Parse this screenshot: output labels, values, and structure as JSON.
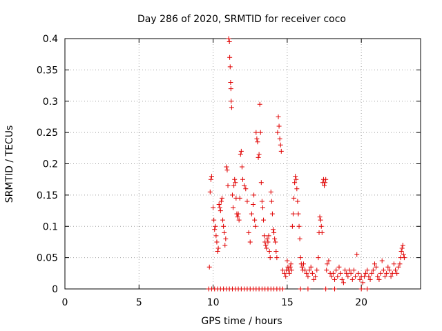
{
  "chart_data": {
    "type": "scatter",
    "title": "Day 286 of 2020, SRMTID for receiver coco",
    "xlabel": "GPS time / hours",
    "ylabel": "SRMTID / TECUs",
    "xlim": [
      0,
      24
    ],
    "ylim": [
      0,
      0.4
    ],
    "grid": true,
    "xticks": [
      {
        "value": 0,
        "label": "0"
      },
      {
        "value": 5,
        "label": "5"
      },
      {
        "value": 10,
        "label": "10"
      },
      {
        "value": 15,
        "label": "15"
      },
      {
        "value": 20,
        "label": "20"
      }
    ],
    "yticks": [
      {
        "value": 0,
        "label": "0"
      },
      {
        "value": 0.05,
        "label": "0.05"
      },
      {
        "value": 0.1,
        "label": "0.1"
      },
      {
        "value": 0.15,
        "label": "0.15"
      },
      {
        "value": 0.2,
        "label": "0.2"
      },
      {
        "value": 0.25,
        "label": "0.25"
      },
      {
        "value": 0.3,
        "label": "0.3"
      },
      {
        "value": 0.35,
        "label": "0.35"
      },
      {
        "value": 0.4,
        "label": "0.4"
      }
    ],
    "series": [
      {
        "name": "SRMTID",
        "marker": "+",
        "color": "#e00000",
        "points": [
          [
            9.75,
            0.035
          ],
          [
            9.8,
            0.155
          ],
          [
            9.85,
            0.175
          ],
          [
            9.9,
            0.18
          ],
          [
            10.0,
            0.13
          ],
          [
            10.05,
            0.11
          ],
          [
            10.1,
            0.095
          ],
          [
            10.15,
            0.1
          ],
          [
            10.2,
            0.085
          ],
          [
            10.25,
            0.075
          ],
          [
            10.3,
            0.06
          ],
          [
            10.35,
            0.065
          ],
          [
            10.4,
            0.135
          ],
          [
            10.45,
            0.13
          ],
          [
            10.5,
            0.125
          ],
          [
            10.55,
            0.14
          ],
          [
            10.6,
            0.145
          ],
          [
            10.65,
            0.11
          ],
          [
            10.7,
            0.1
          ],
          [
            10.75,
            0.09
          ],
          [
            10.8,
            0.07
          ],
          [
            10.85,
            0.08
          ],
          [
            10.9,
            0.195
          ],
          [
            10.95,
            0.19
          ],
          [
            11.0,
            0.165
          ],
          [
            11.05,
            0.4
          ],
          [
            11.1,
            0.395
          ],
          [
            11.12,
            0.37
          ],
          [
            11.15,
            0.355
          ],
          [
            11.18,
            0.33
          ],
          [
            11.2,
            0.32
          ],
          [
            11.22,
            0.3
          ],
          [
            11.25,
            0.29
          ],
          [
            11.3,
            0.15
          ],
          [
            11.35,
            0.13
          ],
          [
            11.4,
            0.165
          ],
          [
            11.45,
            0.175
          ],
          [
            11.5,
            0.17
          ],
          [
            11.55,
            0.145
          ],
          [
            11.6,
            0.12
          ],
          [
            11.65,
            0.115
          ],
          [
            11.7,
            0.12
          ],
          [
            11.75,
            0.11
          ],
          [
            11.8,
            0.145
          ],
          [
            11.85,
            0.215
          ],
          [
            11.9,
            0.22
          ],
          [
            11.95,
            0.195
          ],
          [
            12.0,
            0.175
          ],
          [
            12.1,
            0.165
          ],
          [
            12.2,
            0.16
          ],
          [
            12.3,
            0.14
          ],
          [
            12.4,
            0.09
          ],
          [
            12.5,
            0.075
          ],
          [
            12.6,
            0.12
          ],
          [
            12.7,
            0.135
          ],
          [
            12.75,
            0.15
          ],
          [
            12.8,
            0.11
          ],
          [
            12.85,
            0.1
          ],
          [
            12.9,
            0.25
          ],
          [
            12.95,
            0.24
          ],
          [
            13.0,
            0.235
          ],
          [
            13.05,
            0.21
          ],
          [
            13.1,
            0.215
          ],
          [
            13.15,
            0.295
          ],
          [
            13.2,
            0.25
          ],
          [
            13.25,
            0.17
          ],
          [
            13.3,
            0.14
          ],
          [
            13.35,
            0.13
          ],
          [
            13.4,
            0.11
          ],
          [
            13.45,
            0.085
          ],
          [
            13.5,
            0.075
          ],
          [
            13.55,
            0.07
          ],
          [
            13.6,
            0.065
          ],
          [
            13.65,
            0.08
          ],
          [
            13.7,
            0.075
          ],
          [
            13.75,
            0.085
          ],
          [
            13.8,
            0.06
          ],
          [
            13.85,
            0.05
          ],
          [
            13.9,
            0.155
          ],
          [
            13.95,
            0.14
          ],
          [
            14.0,
            0.12
          ],
          [
            14.05,
            0.095
          ],
          [
            14.1,
            0.09
          ],
          [
            14.15,
            0.08
          ],
          [
            14.2,
            0.075
          ],
          [
            14.25,
            0.06
          ],
          [
            14.3,
            0.05
          ],
          [
            14.35,
            0.25
          ],
          [
            14.4,
            0.275
          ],
          [
            14.45,
            0.26
          ],
          [
            14.5,
            0.24
          ],
          [
            14.55,
            0.23
          ],
          [
            14.6,
            0.22
          ],
          [
            14.7,
            0.03
          ],
          [
            14.8,
            0.025
          ],
          [
            14.9,
            0.02
          ],
          [
            14.95,
            0.03
          ],
          [
            15.0,
            0.045
          ],
          [
            15.05,
            0.035
          ],
          [
            15.1,
            0.03
          ],
          [
            15.15,
            0.025
          ],
          [
            15.2,
            0.035
          ],
          [
            15.25,
            0.04
          ],
          [
            15.3,
            0.03
          ],
          [
            15.35,
            0.1
          ],
          [
            15.4,
            0.12
          ],
          [
            15.45,
            0.145
          ],
          [
            15.5,
            0.17
          ],
          [
            15.55,
            0.18
          ],
          [
            15.6,
            0.175
          ],
          [
            15.65,
            0.16
          ],
          [
            15.7,
            0.14
          ],
          [
            15.75,
            0.12
          ],
          [
            15.8,
            0.1
          ],
          [
            15.85,
            0.08
          ],
          [
            15.9,
            0.05
          ],
          [
            15.95,
            0.04
          ],
          [
            16.0,
            0.035
          ],
          [
            16.05,
            0.03
          ],
          [
            16.1,
            0.04
          ],
          [
            16.2,
            0.03
          ],
          [
            16.3,
            0.025
          ],
          [
            16.4,
            0.02
          ],
          [
            16.5,
            0.03
          ],
          [
            16.6,
            0.035
          ],
          [
            16.7,
            0.025
          ],
          [
            16.8,
            0.015
          ],
          [
            16.9,
            0.02
          ],
          [
            17.0,
            0.03
          ],
          [
            17.1,
            0.05
          ],
          [
            17.15,
            0.09
          ],
          [
            17.2,
            0.115
          ],
          [
            17.25,
            0.11
          ],
          [
            17.3,
            0.1
          ],
          [
            17.35,
            0.09
          ],
          [
            17.4,
            0.17
          ],
          [
            17.45,
            0.175
          ],
          [
            17.5,
            0.165
          ],
          [
            17.55,
            0.17
          ],
          [
            17.6,
            0.175
          ],
          [
            17.65,
            0.03
          ],
          [
            17.7,
            0.04
          ],
          [
            17.8,
            0.045
          ],
          [
            17.9,
            0.025
          ],
          [
            18.0,
            0.02
          ],
          [
            18.1,
            0.025
          ],
          [
            18.2,
            0.015
          ],
          [
            18.3,
            0.03
          ],
          [
            18.4,
            0.02
          ],
          [
            18.5,
            0.035
          ],
          [
            18.6,
            0.025
          ],
          [
            18.7,
            0.015
          ],
          [
            18.8,
            0.01
          ],
          [
            18.9,
            0.03
          ],
          [
            19.0,
            0.025
          ],
          [
            19.1,
            0.02
          ],
          [
            19.2,
            0.03
          ],
          [
            19.3,
            0.025
          ],
          [
            19.4,
            0.015
          ],
          [
            19.5,
            0.03
          ],
          [
            19.6,
            0.02
          ],
          [
            19.7,
            0.055
          ],
          [
            19.8,
            0.025
          ],
          [
            19.9,
            0.015
          ],
          [
            20.0,
            0.02
          ],
          [
            20.1,
            0.01
          ],
          [
            20.2,
            0.02
          ],
          [
            20.3,
            0.025
          ],
          [
            20.4,
            0.03
          ],
          [
            20.5,
            0.02
          ],
          [
            20.6,
            0.015
          ],
          [
            20.7,
            0.025
          ],
          [
            20.8,
            0.03
          ],
          [
            20.9,
            0.04
          ],
          [
            21.0,
            0.035
          ],
          [
            21.1,
            0.02
          ],
          [
            21.2,
            0.015
          ],
          [
            21.3,
            0.025
          ],
          [
            21.4,
            0.045
          ],
          [
            21.5,
            0.03
          ],
          [
            21.6,
            0.02
          ],
          [
            21.7,
            0.025
          ],
          [
            21.8,
            0.035
          ],
          [
            21.9,
            0.03
          ],
          [
            22.0,
            0.02
          ],
          [
            22.1,
            0.025
          ],
          [
            22.2,
            0.04
          ],
          [
            22.3,
            0.03
          ],
          [
            22.4,
            0.025
          ],
          [
            22.5,
            0.035
          ],
          [
            22.6,
            0.04
          ],
          [
            22.65,
            0.05
          ],
          [
            22.7,
            0.06
          ],
          [
            22.75,
            0.065
          ],
          [
            22.8,
            0.07
          ],
          [
            22.85,
            0.055
          ],
          [
            22.9,
            0.05
          ],
          [
            9.7,
            0
          ],
          [
            9.9,
            0
          ],
          [
            10.1,
            0
          ],
          [
            10.3,
            0
          ],
          [
            10.5,
            0
          ],
          [
            10.7,
            0
          ],
          [
            10.9,
            0
          ],
          [
            11.1,
            0
          ],
          [
            11.3,
            0
          ],
          [
            11.5,
            0
          ],
          [
            11.7,
            0
          ],
          [
            11.9,
            0
          ],
          [
            12.1,
            0
          ],
          [
            12.3,
            0
          ],
          [
            12.5,
            0
          ],
          [
            12.7,
            0
          ],
          [
            12.9,
            0
          ],
          [
            13.1,
            0
          ],
          [
            13.3,
            0
          ],
          [
            13.5,
            0
          ],
          [
            13.7,
            0
          ],
          [
            13.9,
            0
          ],
          [
            14.1,
            0
          ],
          [
            14.3,
            0
          ],
          [
            14.5,
            0
          ],
          [
            14.7,
            0
          ],
          [
            15.9,
            0
          ],
          [
            16.4,
            0
          ],
          [
            17.6,
            0
          ],
          [
            18.2,
            0
          ],
          [
            20.0,
            0
          ],
          [
            20.4,
            0
          ]
        ]
      }
    ]
  }
}
